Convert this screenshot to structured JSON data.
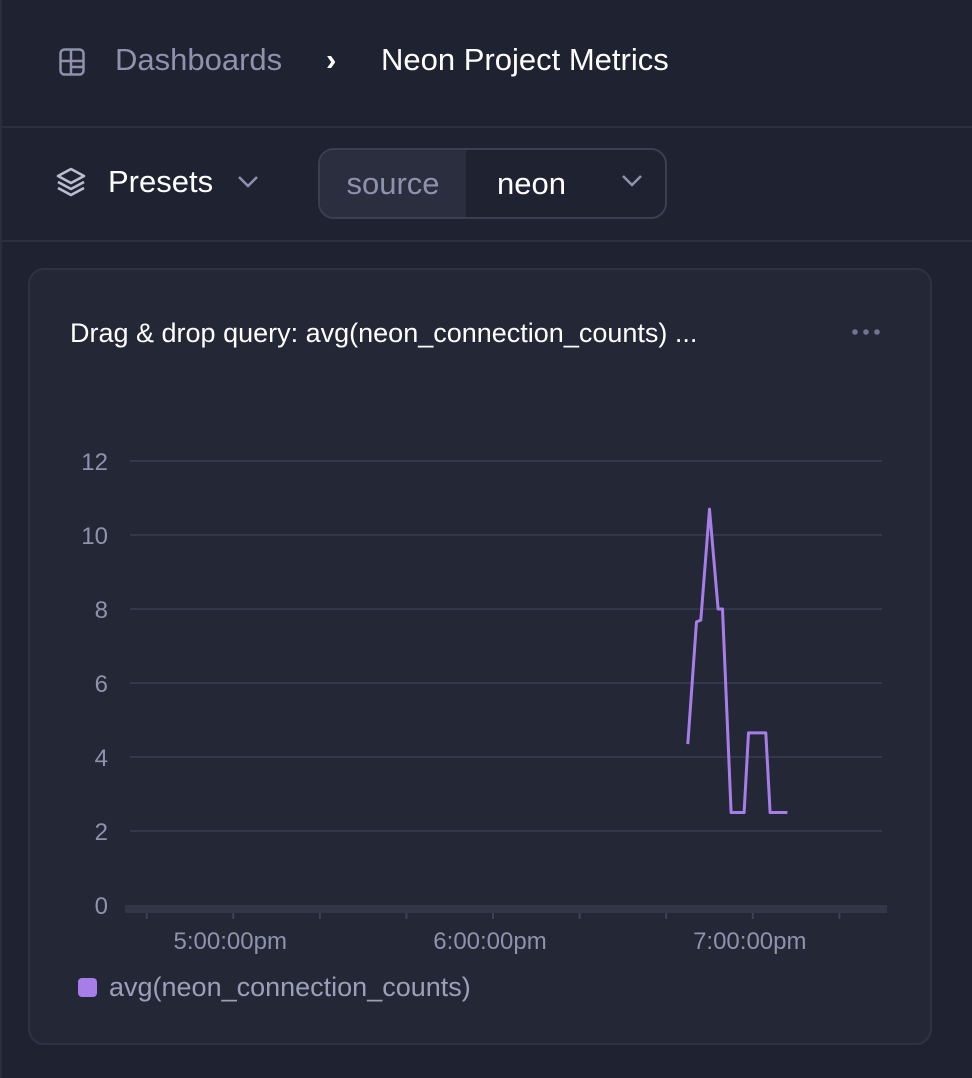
{
  "breadcrumb": {
    "icon": "dashboard-grid-icon",
    "parent": "Dashboards",
    "separator": "›",
    "current": "Neon Project Metrics"
  },
  "toolbar": {
    "presets_icon": "layers-icon",
    "presets_label": "Presets",
    "filter": {
      "key": "source",
      "value": "neon"
    }
  },
  "panel": {
    "title": "Drag & drop query: avg(neon_connection_counts) ...",
    "menu_icon": "more-horizontal-icon"
  },
  "chart_data": {
    "type": "line",
    "title": "",
    "xlabel": "",
    "ylabel": "",
    "ylim": [
      0,
      12
    ],
    "yticks": [
      "0",
      "2",
      "4",
      "6",
      "8",
      "10",
      "12"
    ],
    "ytick_values": [
      0,
      2,
      4,
      6,
      8,
      10,
      12
    ],
    "xlim": [
      "16:35",
      "19:31"
    ],
    "xticks": [
      "5:00:00pm",
      "6:00:00pm",
      "7:00:00pm"
    ],
    "xtick_times": [
      "17:00",
      "18:00",
      "19:00"
    ],
    "grid": true,
    "legend_position": "bottom-left",
    "series": [
      {
        "name": "avg(neon_connection_counts)",
        "color": "#a77ee8",
        "x": [
          "18:45",
          "18:47",
          "18:48",
          "18:50",
          "18:52",
          "18:53",
          "18:55",
          "18:58",
          "18:59",
          "19:03",
          "19:04",
          "19:08"
        ],
        "values": [
          4.35,
          7.65,
          7.7,
          10.7,
          8.0,
          8.0,
          2.5,
          2.5,
          4.65,
          4.65,
          2.5,
          2.5
        ]
      }
    ]
  },
  "colors": {
    "background": "#1f2231",
    "card": "#232736",
    "accent": "#a77ee8",
    "muted_text": "#8d93ad"
  }
}
